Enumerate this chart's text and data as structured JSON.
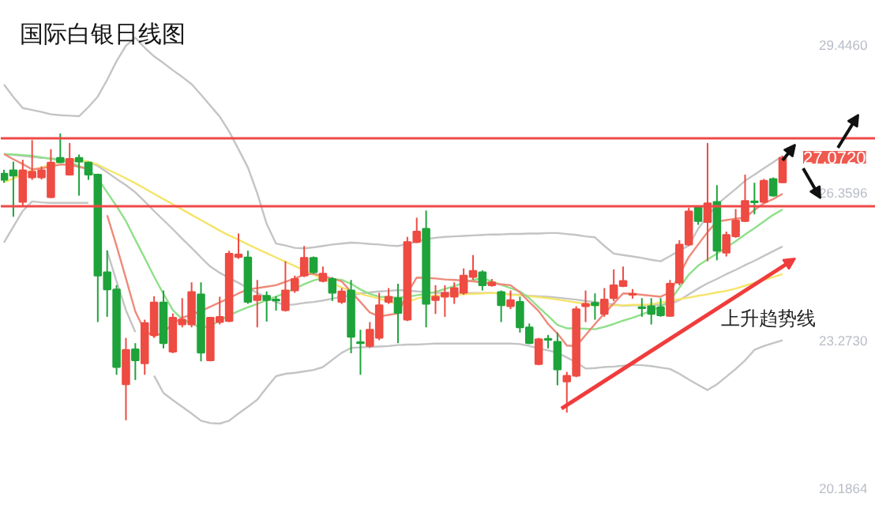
{
  "chart_data": {
    "type": "candlestick",
    "title": "国际白银日线图",
    "categories": [
      null,
      null,
      null,
      null,
      null,
      null,
      null,
      null,
      null,
      null,
      null,
      null,
      null,
      null,
      null,
      null,
      null,
      null,
      null,
      null,
      null,
      null,
      null,
      null,
      null,
      null,
      null,
      null,
      null,
      null,
      null,
      null,
      null,
      null,
      null,
      null,
      null,
      null,
      null,
      null,
      null,
      null,
      null,
      null,
      null,
      null,
      null,
      null,
      null,
      null,
      null,
      null,
      null,
      null,
      null,
      null,
      null,
      null,
      null,
      null,
      null,
      null,
      null,
      null,
      null,
      null,
      null,
      null,
      null,
      null,
      null,
      null,
      null,
      null,
      null,
      null,
      null,
      null,
      null,
      null,
      null,
      null,
      null,
      null
    ],
    "ohlc": [
      [
        26.76,
        26.84,
        26.57,
        26.63
      ],
      [
        26.83,
        27.01,
        25.86,
        26.72
      ],
      [
        26.17,
        27.05,
        26.08,
        26.83
      ],
      [
        26.68,
        27.46,
        26.63,
        26.8
      ],
      [
        26.68,
        26.91,
        26.64,
        26.83
      ],
      [
        26.27,
        27.27,
        26.25,
        26.99
      ],
      [
        27.09,
        27.6,
        26.98,
        27.0
      ],
      [
        26.74,
        27.4,
        26.72,
        27.07
      ],
      [
        27.09,
        27.16,
        26.3,
        27.01
      ],
      [
        26.99,
        27.01,
        26.63,
        26.74
      ],
      [
        26.74,
        26.76,
        23.66,
        24.63
      ],
      [
        24.7,
        25.16,
        23.77,
        24.34
      ],
      [
        24.34,
        24.43,
        22.56,
        22.72
      ],
      [
        22.36,
        23.33,
        21.61,
        23.08
      ],
      [
        23.09,
        23.22,
        22.45,
        22.86
      ],
      [
        22.8,
        23.71,
        22.56,
        23.64
      ],
      [
        23.39,
        24.2,
        23.33,
        24.07
      ],
      [
        24.07,
        24.32,
        23.11,
        23.22
      ],
      [
        23.04,
        23.84,
        23.01,
        23.75
      ],
      [
        23.61,
        24.16,
        23.55,
        23.71
      ],
      [
        23.61,
        24.49,
        23.55,
        24.29
      ],
      [
        24.24,
        24.49,
        22.84,
        23.02
      ],
      [
        22.86,
        23.77,
        22.84,
        23.75
      ],
      [
        23.66,
        24.19,
        23.61,
        23.77
      ],
      [
        23.68,
        25.15,
        23.66,
        25.09
      ],
      [
        25.02,
        25.51,
        24.98,
        25.07
      ],
      [
        25.01,
        25.15,
        24.04,
        24.08
      ],
      [
        24.12,
        24.54,
        23.55,
        24.21
      ],
      [
        24.21,
        24.3,
        23.67,
        24.12
      ],
      [
        24.13,
        24.2,
        23.9,
        24.11
      ],
      [
        23.91,
        24.93,
        23.88,
        24.32
      ],
      [
        24.32,
        24.63,
        24.27,
        24.56
      ],
      [
        24.63,
        25.25,
        24.6,
        25.0
      ],
      [
        25.0,
        25.03,
        24.67,
        24.7
      ],
      [
        24.52,
        24.82,
        24.49,
        24.67
      ],
      [
        24.56,
        24.6,
        24.1,
        24.27
      ],
      [
        24.08,
        24.37,
        24.04,
        24.3
      ],
      [
        24.32,
        24.54,
        23.01,
        23.35
      ],
      [
        23.24,
        23.5,
        22.56,
        23.22
      ],
      [
        23.16,
        23.66,
        23.12,
        23.5
      ],
      [
        23.33,
        24.27,
        23.28,
        24.01
      ],
      [
        24.08,
        24.37,
        24.04,
        24.19
      ],
      [
        24.16,
        24.46,
        23.22,
        23.85
      ],
      [
        23.71,
        25.44,
        23.68,
        25.33
      ],
      [
        25.33,
        25.84,
        25.31,
        25.55
      ],
      [
        25.61,
        25.99,
        23.55,
        24.04
      ],
      [
        24.12,
        24.43,
        23.83,
        24.19
      ],
      [
        24.19,
        24.43,
        23.77,
        24.27
      ],
      [
        24.19,
        24.49,
        24.04,
        24.37
      ],
      [
        24.27,
        24.78,
        24.23,
        24.63
      ],
      [
        24.6,
        25.06,
        24.54,
        24.73
      ],
      [
        24.7,
        24.74,
        24.32,
        24.43
      ],
      [
        24.43,
        24.56,
        24.4,
        24.49
      ],
      [
        24.29,
        24.32,
        23.66,
        24.01
      ],
      [
        23.99,
        24.32,
        23.93,
        24.12
      ],
      [
        24.08,
        24.19,
        23.44,
        23.55
      ],
      [
        23.55,
        23.63,
        23.2,
        23.22
      ],
      [
        22.78,
        23.33,
        22.76,
        23.3
      ],
      [
        23.31,
        23.39,
        23.11,
        23.29
      ],
      [
        23.25,
        23.44,
        22.34,
        22.67
      ],
      [
        22.42,
        22.62,
        21.77,
        22.54
      ],
      [
        22.54,
        23.99,
        22.51,
        23.93
      ],
      [
        23.99,
        24.32,
        23.66,
        24.04
      ],
      [
        24.06,
        24.26,
        23.71,
        24.01
      ],
      [
        23.83,
        24.37,
        23.77,
        24.13
      ],
      [
        24.16,
        24.76,
        24.1,
        24.43
      ],
      [
        24.41,
        24.82,
        24.39,
        24.52
      ],
      [
        24.23,
        24.35,
        24.15,
        24.25
      ],
      [
        23.97,
        24.16,
        23.77,
        23.95
      ],
      [
        23.99,
        24.16,
        23.61,
        23.83
      ],
      [
        23.97,
        24.16,
        23.77,
        23.8
      ],
      [
        23.79,
        24.54,
        23.77,
        24.46
      ],
      [
        24.48,
        25.37,
        24.43,
        25.28
      ],
      [
        25.28,
        26.05,
        25.25,
        25.97
      ],
      [
        26.05,
        26.08,
        25.69,
        25.77
      ],
      [
        25.75,
        27.4,
        24.93,
        26.14
      ],
      [
        26.17,
        26.52,
        24.95,
        25.15
      ],
      [
        25.11,
        25.55,
        25.03,
        25.48
      ],
      [
        25.45,
        26.02,
        25.42,
        25.78
      ],
      [
        25.77,
        26.74,
        25.75,
        26.19
      ],
      [
        26.18,
        26.57,
        25.91,
        26.16
      ],
      [
        26.17,
        26.65,
        26.14,
        26.61
      ],
      [
        26.65,
        26.68,
        26.28,
        26.3
      ],
      [
        26.58,
        27.13,
        26.56,
        27.09
      ]
    ],
    "series": [
      {
        "type": "line",
        "color": "#c4c4c4",
        "values": [
          28.62,
          28.36,
          28.13,
          28.09,
          28.05,
          28.0,
          27.98,
          27.97,
          27.96,
          28.15,
          28.37,
          28.72,
          29.11,
          29.43,
          29.6,
          29.39,
          29.21,
          29.07,
          28.92,
          28.78,
          28.63,
          28.41,
          28.18,
          27.95,
          27.64,
          27.27,
          26.89,
          26.35,
          25.71,
          25.3,
          25.26,
          25.21,
          25.2,
          25.22,
          25.25,
          25.28,
          25.3,
          25.32,
          25.31,
          25.29,
          25.28,
          25.26,
          25.25,
          25.29,
          25.34,
          25.39,
          25.42,
          25.44,
          25.45,
          25.46,
          25.47,
          25.48,
          25.49,
          25.49,
          25.5,
          25.5,
          25.51,
          25.51,
          25.52,
          25.52,
          25.5,
          25.48,
          25.45,
          25.43,
          25.25,
          25.09,
          25.06,
          25.03,
          25.0,
          24.96,
          24.93,
          25.04,
          25.15,
          25.26,
          25.61,
          25.87,
          26.11,
          26.28,
          26.44,
          26.61,
          26.74,
          26.87,
          27.0,
          27.13
        ]
      },
      {
        "type": "line",
        "color": "#c4c4c4",
        "values": [
          27.17,
          27.15,
          27.13,
          27.11,
          27.09,
          27.08,
          27.06,
          27.04,
          27.02,
          27.01,
          26.92,
          26.79,
          26.65,
          26.52,
          26.37,
          26.18,
          25.98,
          25.79,
          25.6,
          25.4,
          25.21,
          25.01,
          24.82,
          24.69,
          24.58,
          24.48,
          24.37,
          24.27,
          24.17,
          24.08,
          24.01,
          24.03,
          24.06,
          24.08,
          24.11,
          24.15,
          24.19,
          24.22,
          24.26,
          24.28,
          24.3,
          24.31,
          24.33,
          24.32,
          24.3,
          24.29,
          24.27,
          24.27,
          24.27,
          24.27,
          24.27,
          24.27,
          24.27,
          24.26,
          24.24,
          24.23,
          24.21,
          24.2,
          24.19,
          24.17,
          24.15,
          24.13,
          24.1,
          24.08,
          24.05,
          24.03,
          24.0,
          24.01,
          24.01,
          24.02,
          24.02,
          24.03,
          24.12,
          24.24,
          24.36,
          24.47,
          24.56,
          24.66,
          24.75,
          24.85,
          24.94,
          25.04,
          25.14,
          25.24
        ]
      },
      {
        "type": "line",
        "color": "#c4c4c4",
        "values": [
          25.32,
          25.65,
          25.98,
          26.18,
          26.16,
          26.15,
          26.15,
          26.15,
          26.15,
          26.15,
          null,
          25.14,
          24.51,
          23.91,
          23.45,
          null,
          22.54,
          22.18,
          22.03,
          21.89,
          21.75,
          21.6,
          21.55,
          21.54,
          21.6,
          21.75,
          21.89,
          22.04,
          22.29,
          22.53,
          22.58,
          22.6,
          22.63,
          22.66,
          22.72,
          22.87,
          23.02,
          23.12,
          23.13,
          23.14,
          23.15,
          23.16,
          23.18,
          23.19,
          23.19,
          23.2,
          23.21,
          23.21,
          23.21,
          23.21,
          23.21,
          23.21,
          23.21,
          23.21,
          23.21,
          23.2,
          23.16,
          23.11,
          23.07,
          23.02,
          22.92,
          22.82,
          22.69,
          22.7,
          22.72,
          22.73,
          22.75,
          22.77,
          22.76,
          22.74,
          22.71,
          22.68,
          22.58,
          22.46,
          22.35,
          22.24,
          22.36,
          22.52,
          22.68,
          22.86,
          23.08,
          23.16,
          23.22,
          23.28
        ]
      },
      {
        "type": "line",
        "color": "#f5e46a",
        "values": [
          26.58,
          26.66,
          26.75,
          26.83,
          26.89,
          26.95,
          27.01,
          27.07,
          27.04,
          27.01,
          26.95,
          26.85,
          26.76,
          26.66,
          26.56,
          26.45,
          26.34,
          26.23,
          26.12,
          26.01,
          25.9,
          25.79,
          25.68,
          25.57,
          25.47,
          25.38,
          25.28,
          25.19,
          25.1,
          25.01,
          24.92,
          24.83,
          24.74,
          24.65,
          24.56,
          24.47,
          24.38,
          24.31,
          24.25,
          24.2,
          24.15,
          24.09,
          24.04,
          24.08,
          24.15,
          24.2,
          24.21,
          24.22,
          24.23,
          24.24,
          24.25,
          24.26,
          24.27,
          24.25,
          24.23,
          24.22,
          24.2,
          24.18,
          24.16,
          24.13,
          24.1,
          24.07,
          24.04,
          24.01,
          24.0,
          24.01,
          24.01,
          24.02,
          24.02,
          24.03,
          24.07,
          24.1,
          24.14,
          24.17,
          24.21,
          24.24,
          24.28,
          24.31,
          24.36,
          24.42,
          24.48,
          24.54,
          24.6,
          24.66
        ]
      },
      {
        "type": "line",
        "color": "#8fe08a",
        "values": [
          27.17,
          27.16,
          27.15,
          27.13,
          27.1,
          27.07,
          27.03,
          27.0,
          26.92,
          26.85,
          26.66,
          26.37,
          26.08,
          25.77,
          25.38,
          25.0,
          24.61,
          24.25,
          23.91,
          23.72,
          23.63,
          23.54,
          23.58,
          23.69,
          23.8,
          23.89,
          23.97,
          24.04,
          24.12,
          24.19,
          24.27,
          24.36,
          24.45,
          24.53,
          24.58,
          24.56,
          24.54,
          24.46,
          24.34,
          24.25,
          24.19,
          24.18,
          24.17,
          24.19,
          24.22,
          24.25,
          24.29,
          24.35,
          24.41,
          24.48,
          24.54,
          24.58,
          24.51,
          24.44,
          24.37,
          24.3,
          24.16,
          23.97,
          23.79,
          23.6,
          23.53,
          23.53,
          23.52,
          23.51,
          23.56,
          23.62,
          23.69,
          23.75,
          23.82,
          23.9,
          23.98,
          24.11,
          24.38,
          24.65,
          24.84,
          24.97,
          25.09,
          25.22,
          25.35,
          25.49,
          25.62,
          25.76,
          25.9,
          26.01
        ]
      },
      {
        "type": "line",
        "color": "#ee8a7a",
        "values": [
          27.17,
          27.06,
          26.96,
          26.85,
          26.87,
          26.91,
          26.95,
          26.95,
          26.9,
          26.86,
          null,
          25.89,
          25.25,
          24.57,
          23.88,
          23.48,
          23.36,
          23.44,
          23.63,
          23.75,
          23.82,
          23.89,
          23.98,
          24.07,
          24.16,
          24.26,
          24.34,
          24.37,
          24.4,
          24.43,
          24.5,
          24.57,
          24.65,
          24.67,
          24.62,
          24.57,
          24.51,
          24.29,
          24.08,
          23.86,
          23.78,
          23.81,
          23.84,
          24.26,
          24.59,
          24.58,
          24.57,
          24.55,
          24.54,
          24.53,
          24.51,
          24.49,
          24.47,
          24.45,
          24.43,
          24.28,
          24.08,
          23.89,
          23.62,
          23.42,
          23.17,
          23.16,
          23.39,
          23.62,
          23.84,
          24.05,
          24.26,
          24.25,
          24.23,
          24.21,
          24.19,
          24.28,
          24.65,
          25.02,
          25.28,
          25.54,
          25.76,
          25.79,
          25.82,
          25.84,
          26.0,
          26.14,
          26.23,
          26.34
        ]
      }
    ],
    "ref_lines": [
      {
        "axis": "y",
        "value": 27.5,
        "color": "#f04848"
      },
      {
        "axis": "y",
        "value": 26.08,
        "color": "#f04848"
      }
    ],
    "annotations": [
      "上升趋势线",
      "27.0720"
    ],
    "ylim": [
      19.51,
      30.37
    ],
    "yticks": [
      {
        "value": 29.446,
        "label": "29.4460"
      },
      {
        "value": 26.3596,
        "label": "26.3596"
      },
      {
        "value": 23.273,
        "label": "23.2730"
      },
      {
        "value": 20.1864,
        "label": "20.1864"
      }
    ],
    "tick_labels": "y"
  }
}
